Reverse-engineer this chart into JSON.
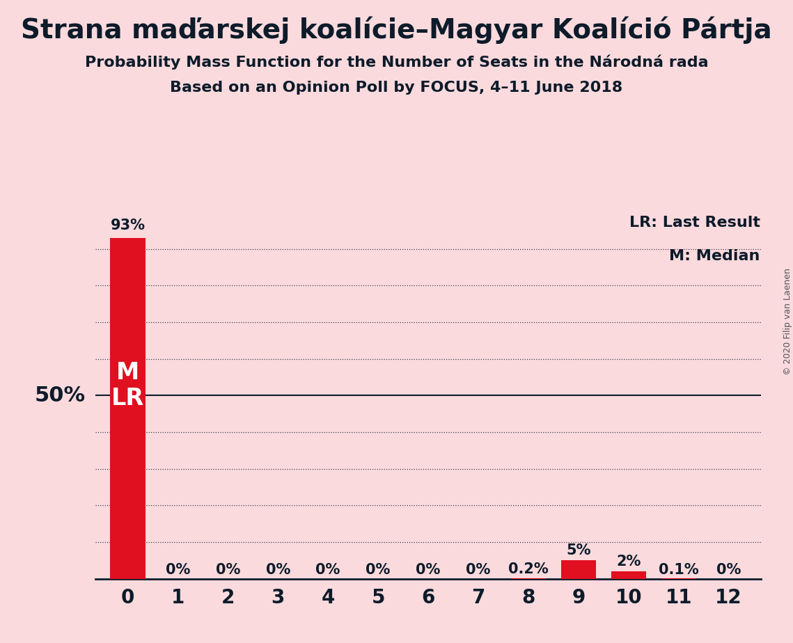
{
  "title": "Strana maďarskej koalície–Magyar Koalíció Pártja",
  "subtitle1": "Probability Mass Function for the Number of Seats in the Národná rada",
  "subtitle2": "Based on an Opinion Poll by FOCUS, 4–11 June 2018",
  "copyright": "© 2020 Filip van Laenen",
  "categories": [
    0,
    1,
    2,
    3,
    4,
    5,
    6,
    7,
    8,
    9,
    10,
    11,
    12
  ],
  "values": [
    93,
    0,
    0,
    0,
    0,
    0,
    0,
    0,
    0.2,
    5,
    2,
    0.1,
    0
  ],
  "bar_color": "#e01020",
  "background_color": "#fadadd",
  "text_color": "#0d1b2a",
  "label_50pct": "50%",
  "label_lr": "LR",
  "label_m": "M",
  "legend_lr": "LR: Last Result",
  "legend_m": "M: Median",
  "ylim": [
    0,
    100
  ],
  "grid_y_dotted": [
    10,
    20,
    30,
    40,
    60,
    70,
    80,
    90
  ],
  "grid_y_solid": [
    50
  ],
  "bar_labels": [
    "93%",
    "0%",
    "0%",
    "0%",
    "0%",
    "0%",
    "0%",
    "0%",
    "0.2%",
    "5%",
    "2%",
    "0.1%",
    "0%"
  ],
  "title_fontsize": 28,
  "subtitle_fontsize": 16,
  "tick_fontsize": 20,
  "label_fontsize": 15,
  "legend_fontsize": 16,
  "bar_label_fontsize": 15,
  "ml_fontsize": 24
}
